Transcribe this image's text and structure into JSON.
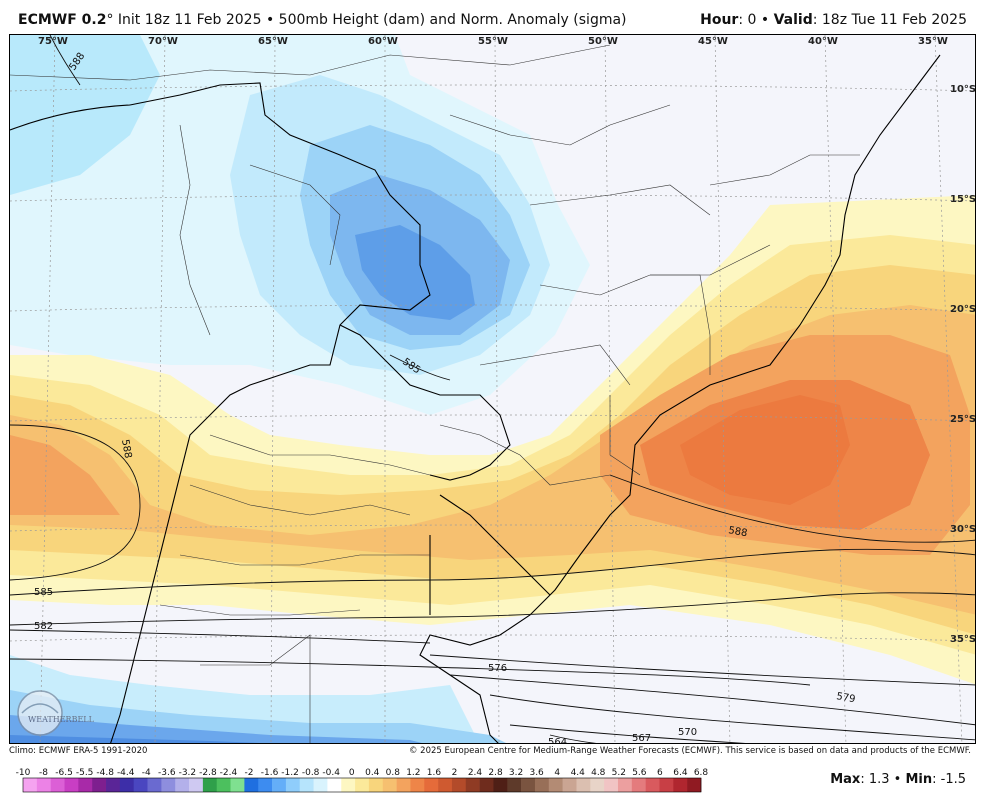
{
  "header": {
    "model": "ECMWF 0.2",
    "degree": "°",
    "init": "Init 18z 11 Feb 2025",
    "sep": "•",
    "product": "500mb Height (dam) and Norm. Anomaly (sigma)",
    "hour_label": "Hour",
    "hour_value": ": 0",
    "valid_label": "Valid",
    "valid_value": ": 18z Tue 11 Feb 2025"
  },
  "map": {
    "lon_labels": [
      "75°W",
      "70°W",
      "65°W",
      "60°W",
      "55°W",
      "50°W",
      "45°W",
      "40°W",
      "35°W"
    ],
    "lat_labels": [
      "10°S",
      "15°S",
      "20°S",
      "25°S",
      "30°S",
      "35°S"
    ],
    "contour_labels": [
      "588",
      "585",
      "588",
      "585",
      "582",
      "576",
      "579",
      "570",
      "567",
      "564",
      "588"
    ],
    "logo_text": "WEATHERBELL"
  },
  "footer": {
    "climo": "Climo: ECMWF ERA-5 1991-2020",
    "copyright": "© 2025 European Centre for Medium-Range Weather Forecasts (ECMWF). This service is based on data and products of the ECMWF."
  },
  "colorbar": {
    "ticks": [
      "-10",
      "-8",
      "-6.5",
      "-5.5",
      "-4.8",
      "-4.4",
      "-4",
      "-3.6",
      "-3.2",
      "-2.8",
      "-2.4",
      "-2",
      "-1.6",
      "-1.2",
      "-0.8",
      "-0.4",
      "0",
      "0.4",
      "0.8",
      "1.2",
      "1.6",
      "2",
      "2.4",
      "2.8",
      "3.2",
      "3.6",
      "4",
      "4.4",
      "4.8",
      "5.2",
      "5.6",
      "6",
      "6.4",
      "6.8"
    ],
    "colors": [
      "#f5a3f0",
      "#ec82e6",
      "#dc5fd6",
      "#c93ec4",
      "#a82aa8",
      "#7e1f8f",
      "#5a2597",
      "#3d2ea8",
      "#4a46c0",
      "#6a6ad0",
      "#8e8ede",
      "#b3b0ea",
      "#cfc9f2",
      "#2fa04a",
      "#4cc05e",
      "#7fe090",
      "#1f6fe0",
      "#3d8cf0",
      "#64aef8",
      "#8fcdfb",
      "#b6e4fc",
      "#d9f3fd",
      "#ffffff",
      "#fdf7c2",
      "#fbe99a",
      "#f8d57c",
      "#f6c070",
      "#f3a35e",
      "#ee8548",
      "#e56b3a",
      "#cf5a30",
      "#b34b2a",
      "#8f3b24",
      "#6f2c1d",
      "#4f1f16",
      "#5e3a2a",
      "#7a5440",
      "#986f58",
      "#b38b74",
      "#caa593",
      "#dbbfb0",
      "#e8d4c8",
      "#f1c4c4",
      "#ec9f9f",
      "#e47b7d",
      "#d95a5e",
      "#c83f45",
      "#b0262f",
      "#901a22"
    ]
  },
  "stats": {
    "max_label": "Max",
    "max_value": ": 1.3",
    "sep": "•",
    "min_label": "Min",
    "min_value": ": -1.5"
  }
}
